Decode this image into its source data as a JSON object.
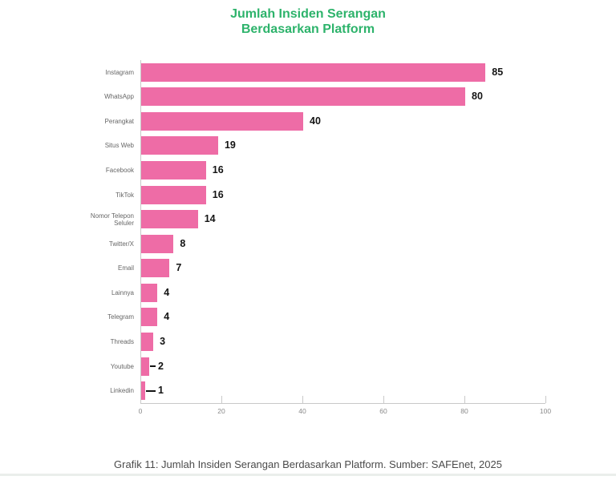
{
  "title": {
    "line1": "Jumlah Insiden Serangan",
    "line2": "Berdasarkan Platform"
  },
  "caption": "Grafik 11: Jumlah Insiden Serangan Berdasarkan Platform. Sumber: SAFEnet, 2025",
  "colors": {
    "bar-color": "#ee6ca6",
    "title-color": "#2db36b",
    "axis-color": "#c9c9c9",
    "tick-label-color": "#8a8a8a",
    "category-label-color": "#666666",
    "value-label-color": "#141414",
    "caption-color": "#4b4b4b"
  },
  "chart_data": {
    "type": "bar",
    "orientation": "horizontal",
    "title": "Jumlah Insiden Serangan Berdasarkan Platform",
    "categories": [
      "Instagram",
      "WhatsApp",
      "Perangkat",
      "Situs Web",
      "Facebook",
      "TikTok",
      "Nomor Telepon Seluler",
      "Twitter/X",
      "Email",
      "Lainnya",
      "Telegram",
      "Threads",
      "Youtube",
      "Linkedin"
    ],
    "values": [
      85,
      80,
      40,
      19,
      16,
      16,
      14,
      8,
      7,
      4,
      4,
      3,
      2,
      1
    ],
    "value_labels": true,
    "xlim": [
      0,
      100
    ],
    "x_ticks": [
      0,
      20,
      40,
      60,
      80,
      100
    ],
    "grid": false,
    "legend": false
  }
}
